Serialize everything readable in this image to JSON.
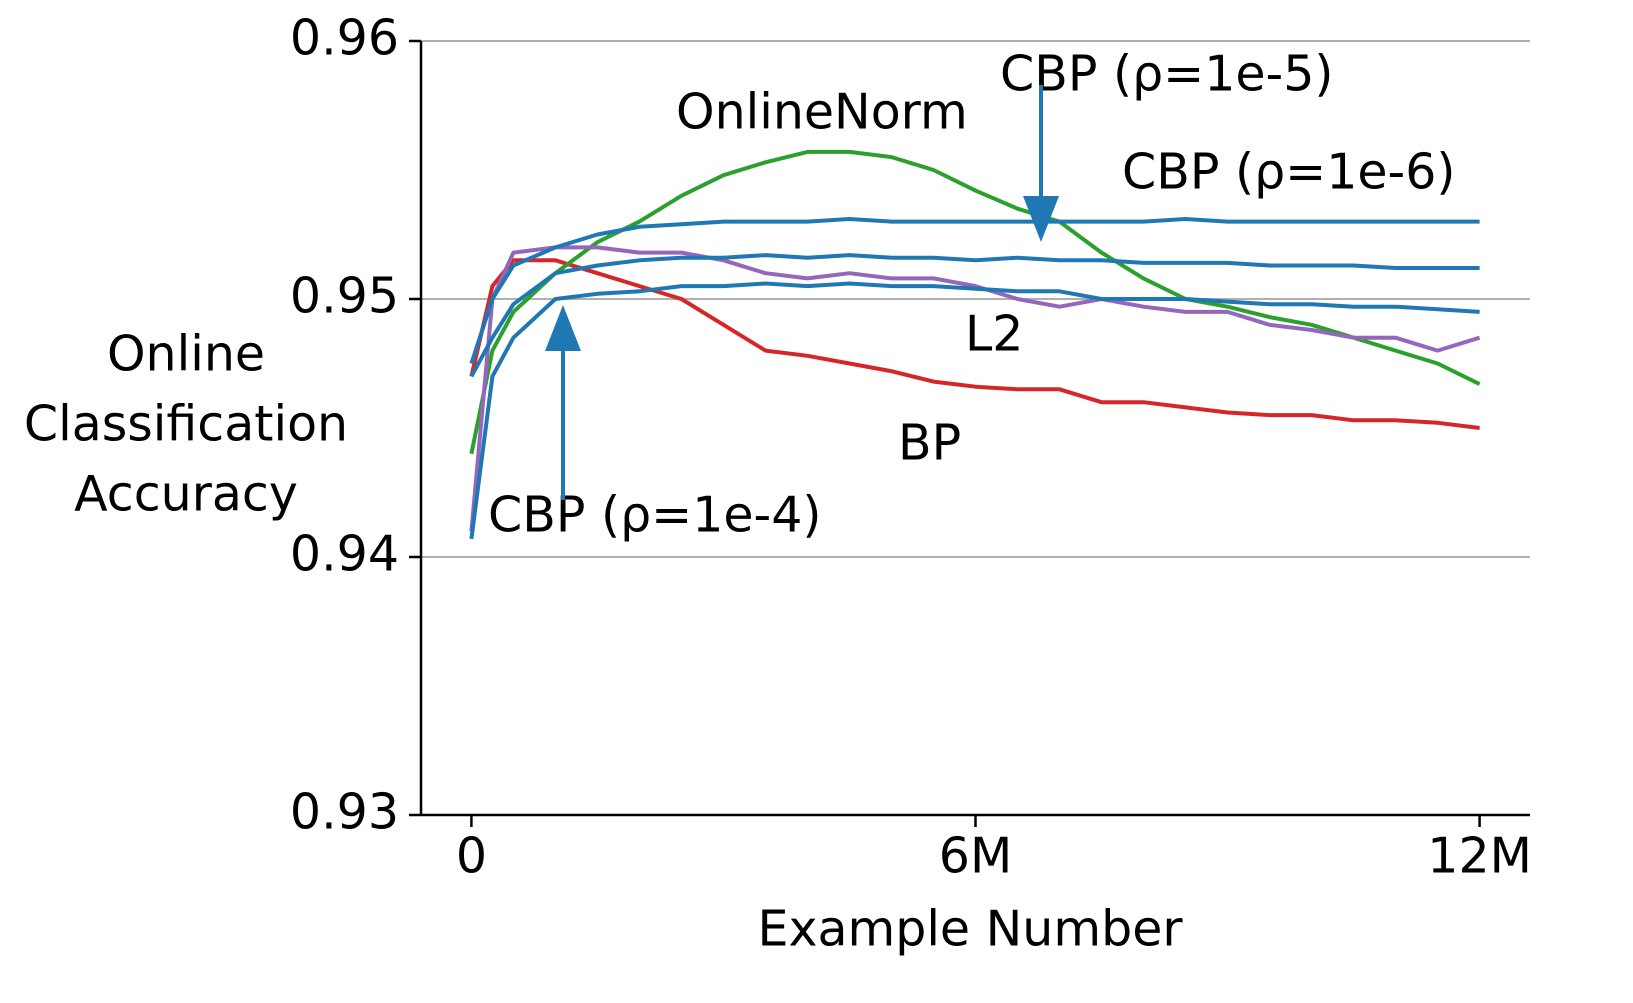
{
  "chart_data": {
    "type": "line",
    "xlabel": "Example Number",
    "ylabel": [
      "Online",
      "Classification",
      "Accuracy"
    ],
    "x": [
      0,
      250000,
      500000,
      1000000,
      1500000,
      2000000,
      2500000,
      3000000,
      3500000,
      4000000,
      4500000,
      5000000,
      5500000,
      6000000,
      6500000,
      7000000,
      7500000,
      8000000,
      8500000,
      9000000,
      9500000,
      10000000,
      10500000,
      11000000,
      11500000,
      12000000
    ],
    "xlim": [
      -600000,
      12600000
    ],
    "xticks": [
      0,
      {
        "value": 6000000,
        "label": "6M"
      },
      {
        "value": 12000000,
        "label": "12M"
      }
    ],
    "ylim": [
      0.93,
      0.96
    ],
    "yticks": [
      0.93,
      0.94,
      0.95,
      0.96
    ],
    "grid": true,
    "series": [
      {
        "name": "BP",
        "color": "#d62728",
        "values": [
          0.947,
          0.9505,
          0.9515,
          0.9515,
          0.951,
          0.9505,
          0.95,
          0.949,
          0.948,
          0.9478,
          0.9475,
          0.9472,
          0.9468,
          0.9466,
          0.9465,
          0.9465,
          0.946,
          0.946,
          0.9458,
          0.9456,
          0.9455,
          0.9455,
          0.9453,
          0.9453,
          0.9452,
          0.945
        ]
      },
      {
        "name": "OnlineNorm",
        "color": "#2ca02c",
        "values": [
          0.944,
          0.948,
          0.9495,
          0.951,
          0.9522,
          0.953,
          0.954,
          0.9548,
          0.9553,
          0.9557,
          0.9557,
          0.9555,
          0.955,
          0.9542,
          0.9535,
          0.953,
          0.9518,
          0.9508,
          0.95,
          0.9497,
          0.9493,
          0.949,
          0.9485,
          0.948,
          0.9475,
          0.9467
        ]
      },
      {
        "name": "L2",
        "color": "#9467bd",
        "values": [
          0.941,
          0.95,
          0.9518,
          0.952,
          0.952,
          0.9518,
          0.9518,
          0.9515,
          0.951,
          0.9508,
          0.951,
          0.9508,
          0.9508,
          0.9505,
          0.95,
          0.9497,
          0.95,
          0.9497,
          0.9495,
          0.9495,
          0.949,
          0.9488,
          0.9485,
          0.9485,
          0.948,
          0.9485
        ]
      },
      {
        "name": "CBP (ρ=1e-4)",
        "color": "#1f77b4",
        "values": [
          0.9407,
          0.947,
          0.9485,
          0.95,
          0.9502,
          0.9503,
          0.9505,
          0.9505,
          0.9506,
          0.9505,
          0.9506,
          0.9505,
          0.9505,
          0.9504,
          0.9503,
          0.9503,
          0.95,
          0.95,
          0.95,
          0.9499,
          0.9498,
          0.9498,
          0.9497,
          0.9497,
          0.9496,
          0.9495
        ]
      },
      {
        "name": "CBP (ρ=1e-5)",
        "color": "#1f77b4",
        "values": [
          0.947,
          0.9485,
          0.9498,
          0.951,
          0.9513,
          0.9515,
          0.9516,
          0.9516,
          0.9517,
          0.9516,
          0.9517,
          0.9516,
          0.9516,
          0.9515,
          0.9516,
          0.9515,
          0.9515,
          0.9514,
          0.9514,
          0.9514,
          0.9513,
          0.9513,
          0.9513,
          0.9512,
          0.9512,
          0.9512
        ]
      },
      {
        "name": "CBP (ρ=1e-6)",
        "color": "#1f77b4",
        "values": [
          0.9475,
          0.95,
          0.9513,
          0.952,
          0.9525,
          0.9528,
          0.9529,
          0.953,
          0.953,
          0.953,
          0.9531,
          0.953,
          0.953,
          0.953,
          0.953,
          0.953,
          0.953,
          0.953,
          0.9531,
          0.953,
          0.953,
          0.953,
          0.953,
          0.953,
          0.953,
          0.953
        ]
      }
    ]
  }
}
